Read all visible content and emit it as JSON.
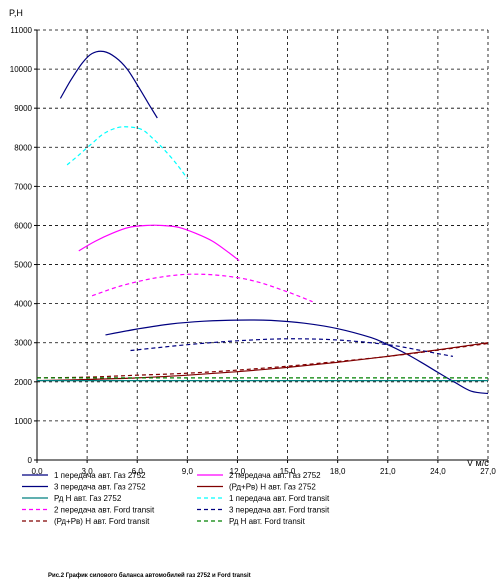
{
  "chart_data": {
    "type": "line",
    "ylabel": "P,Н",
    "xlabel": "V м/с",
    "caption": "Рис.2 График силового баланса автомобилей газ 2752 и Ford transit",
    "xlim": [
      0,
      27
    ],
    "ylim": [
      0,
      11000
    ],
    "x_ticks": [
      "0,0",
      "3,0",
      "6,0",
      "9,0",
      "12,0",
      "15,0",
      "18,0",
      "21,0",
      "24,0",
      "27,0"
    ],
    "y_ticks": [
      "0",
      "1000",
      "2000",
      "3000",
      "4000",
      "5000",
      "6000",
      "7000",
      "8000",
      "9000",
      "10000",
      "11000"
    ],
    "grid": true,
    "legend_position": "bottom",
    "series": [
      {
        "name": "1 передача авт. Газ 2752",
        "color": "#000080",
        "style": "solid",
        "x": [
          1.4,
          2.0,
          2.7,
          3.3,
          4.0,
          4.7,
          5.4,
          6.0,
          6.7,
          7.2
        ],
        "y": [
          9250,
          9700,
          10150,
          10400,
          10450,
          10300,
          10000,
          9600,
          9100,
          8750
        ]
      },
      {
        "name": "2 передача авт. Газ 2752",
        "color": "#ff00ff",
        "style": "solid",
        "x": [
          2.5,
          3.5,
          4.5,
          5.5,
          6.5,
          7.5,
          8.5,
          9.5,
          10.5,
          11.5,
          12.1
        ],
        "y": [
          5350,
          5600,
          5800,
          5950,
          6000,
          6000,
          5950,
          5800,
          5600,
          5300,
          5100
        ]
      },
      {
        "name": "3 передача авт. Газ 2752",
        "color": "#000080",
        "style": "solid",
        "x": [
          4.1,
          6.0,
          8.0,
          10.0,
          12.0,
          14.0,
          16.0,
          18.0,
          20.0,
          21.0,
          22.0,
          23.0,
          24.0,
          25.0,
          26.0,
          27.0
        ],
        "y": [
          3200,
          3350,
          3480,
          3550,
          3580,
          3570,
          3500,
          3360,
          3130,
          2950,
          2740,
          2500,
          2240,
          1990,
          1760,
          1700
        ]
      },
      {
        "name": "(Рд+Рв) Н авт. Газ 2752",
        "color": "#800000",
        "style": "solid",
        "x": [
          0,
          3,
          6,
          9,
          12,
          15,
          18,
          21,
          24,
          27
        ],
        "y": [
          2030,
          2060,
          2100,
          2170,
          2260,
          2370,
          2500,
          2650,
          2820,
          3000
        ]
      },
      {
        "name": "Рд Н авт. Газ 2752",
        "color": "#008080",
        "style": "solid",
        "x": [
          0,
          27
        ],
        "y": [
          2030,
          2030
        ]
      },
      {
        "name": "1 передача авт. Ford transit",
        "color": "#00ffff",
        "style": "dash",
        "x": [
          1.8,
          2.5,
          3.3,
          4.0,
          4.8,
          5.5,
          6.3,
          7.0,
          7.7,
          8.4,
          9.0
        ],
        "y": [
          7550,
          7800,
          8100,
          8350,
          8500,
          8520,
          8450,
          8200,
          7900,
          7550,
          7200
        ]
      },
      {
        "name": "2 передача авт. Ford transit",
        "color": "#ff00ff",
        "style": "dash",
        "x": [
          3.3,
          5.0,
          7.0,
          9.0,
          11.0,
          13.0,
          15.0,
          16.5
        ],
        "y": [
          4200,
          4450,
          4650,
          4750,
          4720,
          4580,
          4300,
          4050
        ]
      },
      {
        "name": "3 передача авт. Ford transit",
        "color": "#000080",
        "style": "dash",
        "x": [
          5.6,
          9.0,
          12.0,
          15.0,
          18.0,
          21.0,
          23.0,
          24.9
        ],
        "y": [
          2800,
          2950,
          3050,
          3100,
          3070,
          2950,
          2800,
          2650
        ]
      },
      {
        "name": "(Рд+Рв) Н авт. Ford transit",
        "color": "#800000",
        "style": "dash",
        "x": [
          0,
          3,
          6,
          9,
          12,
          15,
          18,
          21,
          24,
          27
        ],
        "y": [
          2100,
          2120,
          2170,
          2220,
          2300,
          2400,
          2520,
          2650,
          2810,
          2980
        ]
      },
      {
        "name": "Рд Н авт. Ford transit",
        "color": "#008000",
        "style": "dash",
        "x": [
          0,
          27
        ],
        "y": [
          2100,
          2100
        ]
      }
    ]
  }
}
